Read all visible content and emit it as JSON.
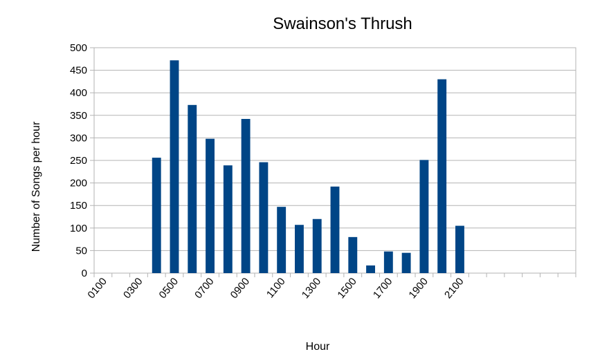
{
  "chart_data": {
    "type": "bar",
    "title": "Swainson's Thrush",
    "xlabel": "Hour",
    "ylabel": "Number of Songs per hour",
    "ylim": [
      0,
      500
    ],
    "yticks": [
      0,
      50,
      100,
      150,
      200,
      250,
      300,
      350,
      400,
      450,
      500
    ],
    "grid": true,
    "legend": "none",
    "bar_color": "#004586",
    "categories": [
      "0100",
      "0200",
      "0300",
      "0400",
      "0500",
      "0600",
      "0700",
      "0800",
      "0900",
      "1000",
      "1100",
      "1200",
      "1300",
      "1400",
      "1500",
      "1600",
      "1700",
      "1800",
      "1900",
      "2000",
      "2100",
      "2200",
      "2300",
      "2400",
      "2500",
      "2600",
      "2700"
    ],
    "tick_labels": [
      "0100",
      "",
      "0300",
      "",
      "0500",
      "",
      "0700",
      "",
      "0900",
      "",
      "1100",
      "",
      "1300",
      "",
      "1500",
      "",
      "1700",
      "",
      "1900",
      "",
      "2100",
      "",
      "",
      "",
      "",
      "",
      ""
    ],
    "values": [
      null,
      null,
      null,
      256,
      472,
      373,
      298,
      239,
      342,
      246,
      147,
      107,
      120,
      192,
      80,
      17,
      48,
      45,
      251,
      430,
      105,
      null,
      null,
      null,
      null,
      null,
      null
    ]
  }
}
